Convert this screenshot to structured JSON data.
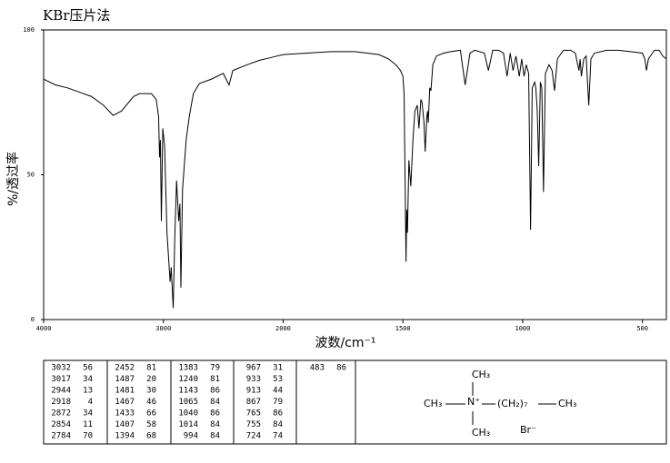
{
  "chart_data": {
    "type": "line",
    "title": "KBr压片法",
    "xlabel": "波数/cm⁻¹",
    "ylabel": "%/透过率",
    "xlim": [
      4000,
      400
    ],
    "xbreak": 2000,
    "xscale_factor_below_break": 2,
    "xticks": [
      4000,
      3000,
      2000,
      1500,
      1000,
      500
    ],
    "ylim": [
      0,
      100
    ],
    "yticks": [
      0,
      50,
      100
    ],
    "color": "#000000",
    "x": [
      4000,
      3900,
      3800,
      3700,
      3600,
      3500,
      3420,
      3350,
      3250,
      3200,
      3100,
      3060,
      3040,
      3032,
      3025,
      3017,
      3005,
      2990,
      2970,
      2944,
      2935,
      2918,
      2905,
      2890,
      2872,
      2862,
      2854,
      2840,
      2810,
      2784,
      2750,
      2700,
      2600,
      2500,
      2452,
      2420,
      2300,
      2200,
      2100,
      2000,
      1900,
      1800,
      1700,
      1600,
      1560,
      1530,
      1510,
      1500,
      1495,
      1487,
      1484,
      1481,
      1475,
      1467,
      1458,
      1450,
      1440,
      1433,
      1425,
      1420,
      1412,
      1407,
      1400,
      1397,
      1394,
      1388,
      1383,
      1375,
      1360,
      1330,
      1300,
      1260,
      1240,
      1220,
      1200,
      1160,
      1143,
      1125,
      1100,
      1080,
      1065,
      1052,
      1040,
      1028,
      1014,
      1004,
      994,
      985,
      975,
      967,
      960,
      950,
      945,
      939,
      933,
      926,
      920,
      913,
      905,
      890,
      877,
      867,
      855,
      830,
      800,
      780,
      765,
      760,
      755,
      745,
      735,
      724,
      715,
      700,
      650,
      600,
      550,
      500,
      490,
      483,
      475,
      450,
      430,
      415,
      400
    ],
    "values": [
      83,
      81,
      80,
      78.5,
      77,
      74,
      70.5,
      72,
      77,
      78,
      78,
      76,
      70,
      56,
      62,
      34,
      66,
      60,
      30,
      13,
      18,
      4,
      28,
      48,
      34,
      40,
      11,
      45,
      62,
      70,
      78,
      81.5,
      83,
      85,
      81,
      86,
      88,
      89.5,
      90.5,
      91.5,
      92,
      92.5,
      92.5,
      91.5,
      90,
      88,
      86,
      84,
      78,
      20,
      38,
      30,
      55,
      46,
      62,
      72,
      74,
      66,
      76,
      75,
      68,
      58,
      70,
      72,
      68,
      80,
      79,
      88,
      91,
      92,
      92.5,
      93,
      81,
      92,
      93,
      92,
      86,
      93,
      93,
      92,
      84,
      92,
      86,
      91,
      84,
      90,
      84,
      88,
      85,
      31,
      80,
      82,
      80,
      72,
      53,
      82,
      80,
      44,
      85,
      88,
      86,
      79,
      90,
      93,
      93,
      92,
      86,
      90,
      84,
      90,
      91,
      74,
      90,
      92,
      93,
      93,
      92.5,
      92,
      90,
      86,
      90,
      93,
      93,
      91,
      90
    ]
  },
  "peak_table": {
    "columns": [
      [
        [
          3032,
          56
        ],
        [
          3017,
          34
        ],
        [
          2944,
          13
        ],
        [
          2918,
          4
        ],
        [
          2872,
          34
        ],
        [
          2854,
          11
        ],
        [
          2784,
          70
        ]
      ],
      [
        [
          2452,
          81
        ],
        [
          1487,
          20
        ],
        [
          1481,
          30
        ],
        [
          1467,
          46
        ],
        [
          1433,
          66
        ],
        [
          1407,
          58
        ],
        [
          1394,
          68
        ]
      ],
      [
        [
          1383,
          79
        ],
        [
          1240,
          81
        ],
        [
          1143,
          86
        ],
        [
          1065,
          84
        ],
        [
          1040,
          86
        ],
        [
          1014,
          84
        ],
        [
          994,
          84
        ]
      ],
      [
        [
          967,
          31
        ],
        [
          933,
          53
        ],
        [
          913,
          44
        ],
        [
          867,
          79
        ],
        [
          765,
          86
        ],
        [
          755,
          84
        ],
        [
          724,
          74
        ]
      ],
      [
        [
          483,
          86
        ]
      ]
    ]
  },
  "structure": {
    "top": "CH₃",
    "left": "CH₃",
    "center": "N⁺",
    "chain": "(CH₂)₇",
    "right": "CH₃",
    "bottom": "CH₃",
    "anion": "Br⁻"
  }
}
